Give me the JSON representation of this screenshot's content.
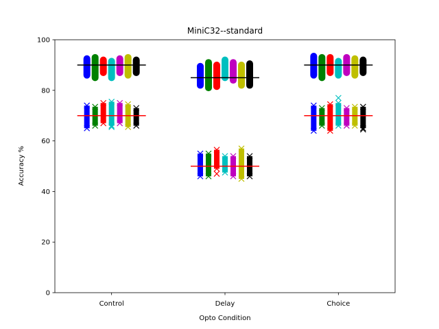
{
  "chart_data": {
    "type": "scatter",
    "title": "MiniC32--standard",
    "xlabel": "Opto Condition",
    "ylabel": "Accuracy %",
    "categories": [
      "Control",
      "Delay",
      "Choice"
    ],
    "ylim": [
      0,
      100
    ],
    "yticks": [
      "0",
      "20",
      "40",
      "60",
      "80",
      "100"
    ],
    "grid": false,
    "reference_lines": [
      {
        "category": "Control",
        "value": 90,
        "color": "#000000"
      },
      {
        "category": "Control",
        "value": 70,
        "color": "#ff0000"
      },
      {
        "category": "Delay",
        "value": 85,
        "color": "#000000"
      },
      {
        "category": "Delay",
        "value": 50,
        "color": "#ff0000"
      },
      {
        "category": "Choice",
        "value": 90,
        "color": "#000000"
      },
      {
        "category": "Choice",
        "value": 70,
        "color": "#ff0000"
      }
    ],
    "series": [
      {
        "color": "#0000ff",
        "high": [
          [
            86,
            92.5
          ],
          [
            82,
            89.5
          ],
          [
            86,
            93.5
          ]
        ],
        "low": [
          [
            65,
            74
          ],
          [
            46,
            55
          ],
          [
            64,
            74
          ]
        ],
        "outliers": [
          [],
          [],
          []
        ]
      },
      {
        "color": "#008000",
        "high": [
          [
            85,
            93
          ],
          [
            81,
            91
          ],
          [
            85,
            93
          ]
        ],
        "low": [
          [
            66,
            73.5
          ],
          [
            46,
            55
          ],
          [
            66,
            73
          ]
        ],
        "outliers": [
          [],
          [],
          []
        ]
      },
      {
        "color": "#ff0000",
        "high": [
          [
            87,
            92
          ],
          [
            81.5,
            90
          ],
          [
            87,
            93
          ]
        ],
        "low": [
          [
            67,
            75
          ],
          [
            49,
            56.5
          ],
          [
            64,
            74.5
          ]
        ],
        "outliers": [
          [],
          [
            47
          ],
          []
        ]
      },
      {
        "color": "#00bfbf",
        "high": [
          [
            85,
            91.5
          ],
          [
            85,
            92
          ],
          [
            86,
            91.5
          ]
        ],
        "low": [
          [
            66,
            75.5
          ],
          [
            47.5,
            54
          ],
          [
            66,
            75
          ]
        ],
        "outliers": [
          [
            65.5
          ],
          [],
          [
            77
          ]
        ]
      },
      {
        "color": "#bf00bf",
        "high": [
          [
            87,
            92.5
          ],
          [
            84,
            91
          ],
          [
            87,
            93
          ]
        ],
        "low": [
          [
            67,
            75
          ],
          [
            46,
            54
          ],
          [
            66,
            73
          ]
        ],
        "outliers": [
          [],
          [],
          []
        ]
      },
      {
        "color": "#bfbf00",
        "high": [
          [
            86,
            93
          ],
          [
            82,
            90
          ],
          [
            86,
            92.5
          ]
        ],
        "low": [
          [
            65.5,
            74.5
          ],
          [
            45,
            57
          ],
          [
            66,
            73.5
          ]
        ],
        "outliers": [
          [],
          [],
          []
        ]
      },
      {
        "color": "#000000",
        "high": [
          [
            87,
            92
          ],
          [
            82,
            90.5
          ],
          [
            87,
            92
          ]
        ],
        "low": [
          [
            66,
            73
          ],
          [
            46,
            54
          ],
          [
            65,
            73.5
          ]
        ],
        "outliers": [
          [],
          [],
          [
            64.5
          ]
        ]
      }
    ]
  }
}
